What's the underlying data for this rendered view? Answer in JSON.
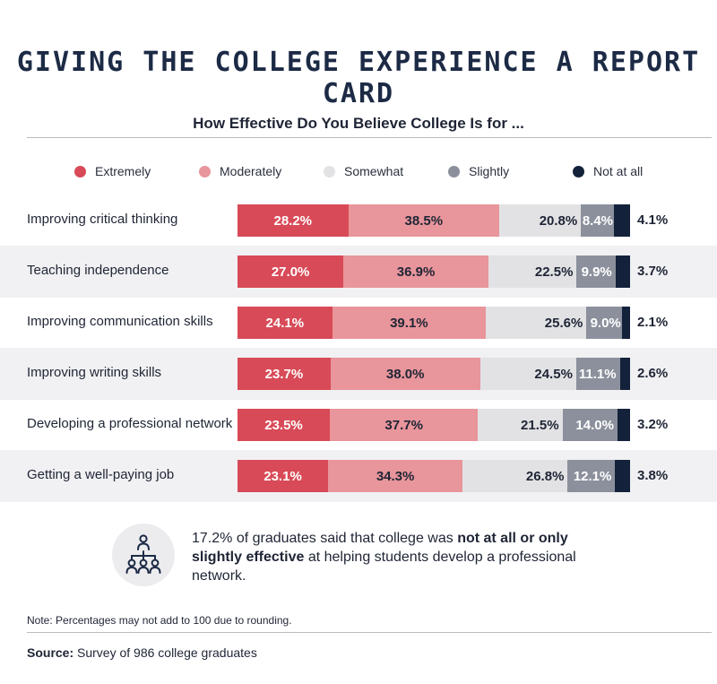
{
  "title": "GIVING THE COLLEGE EXPERIENCE A REPORT CARD",
  "chart_data": {
    "type": "bar",
    "orientation": "horizontal",
    "stacked": true,
    "title": "How Effective Do You Believe College Is for ...",
    "categories": [
      "Improving critical thinking",
      "Teaching independence",
      "Improving communication skills",
      "Improving writing skills",
      "Developing a professional network",
      "Getting a well-paying job"
    ],
    "series": [
      {
        "name": "Extremely",
        "color": "#d84a57",
        "label_color": "#ffffff",
        "values": [
          28.2,
          27.0,
          24.1,
          23.7,
          23.5,
          23.1
        ]
      },
      {
        "name": "Moderately",
        "color": "#e8959b",
        "label_color": "#1f2535",
        "values": [
          38.5,
          36.9,
          39.1,
          38.0,
          37.7,
          34.3
        ]
      },
      {
        "name": "Somewhat",
        "color": "#e2e2e4",
        "label_color": "#1f2535",
        "values": [
          20.8,
          22.5,
          25.6,
          24.5,
          21.5,
          26.8
        ]
      },
      {
        "name": "Slightly",
        "color": "#8b909c",
        "label_color": "#ffffff",
        "values": [
          8.4,
          9.9,
          9.0,
          11.1,
          14.0,
          12.1
        ]
      },
      {
        "name": "Not at all",
        "color": "#14213a",
        "label_color": "#1f2535",
        "values": [
          4.1,
          3.7,
          2.1,
          2.6,
          3.2,
          3.8
        ]
      }
    ],
    "legend_position": "top",
    "value_suffix": "%"
  },
  "callout": {
    "icon": "network-people-icon",
    "text_before": "17.2% of graduates said that college was ",
    "text_bold": "not at all or only slightly effective",
    "text_after": " at helping students develop a professional network."
  },
  "note": "Note: Percentages may not add to 100 due to rounding.",
  "source": {
    "label": "Source:",
    "text": " Survey of 986 college graduates"
  }
}
